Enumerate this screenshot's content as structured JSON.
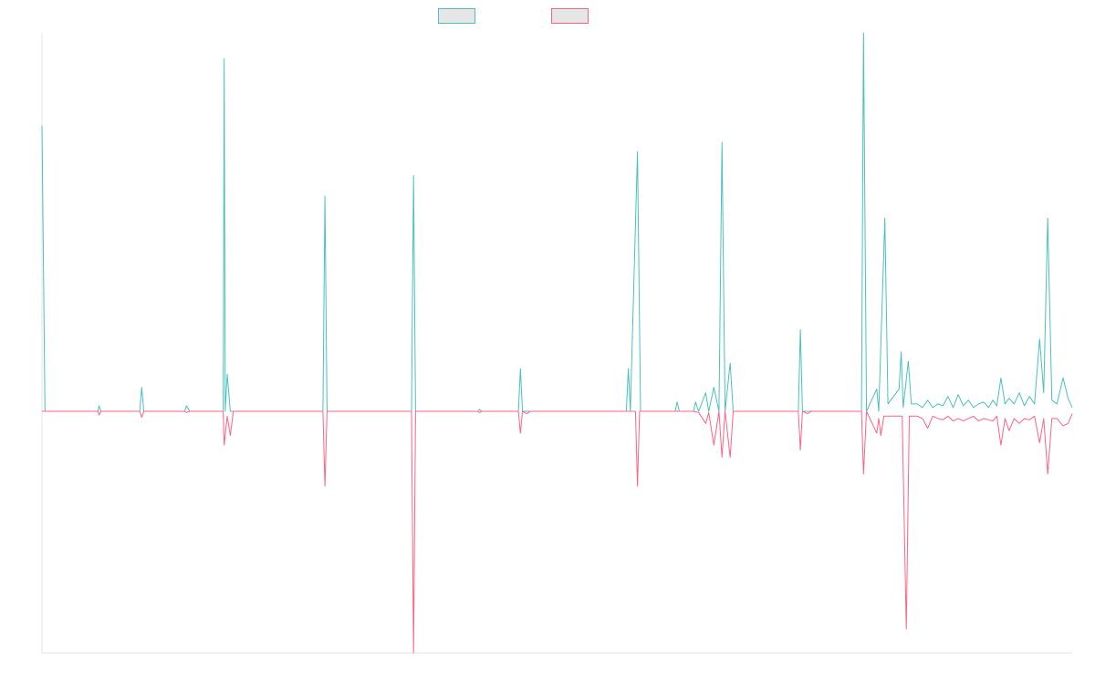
{
  "chart_data": {
    "type": "line",
    "title": "",
    "xlabel": "",
    "ylabel": "",
    "legend_position": "top-center",
    "grid": false,
    "ylim": [
      -100,
      100
    ],
    "series": [
      {
        "color": "#4bc0c0",
        "fill": "#e6e6e6",
        "points": [
          [
            0,
            77
          ],
          [
            0.3,
            0
          ],
          [
            5.5,
            0
          ],
          [
            5.6,
            1.5
          ],
          [
            5.8,
            0
          ],
          [
            9.6,
            0
          ],
          [
            9.8,
            6.5
          ],
          [
            10.0,
            0
          ],
          [
            14.0,
            0
          ],
          [
            14.2,
            1.5
          ],
          [
            14.5,
            0
          ],
          [
            17.8,
            0
          ],
          [
            17.9,
            95
          ],
          [
            18.0,
            0
          ],
          [
            18.2,
            10
          ],
          [
            18.5,
            0
          ],
          [
            27.6,
            0
          ],
          [
            27.8,
            58
          ],
          [
            28.0,
            0
          ],
          [
            36.3,
            0
          ],
          [
            36.5,
            63.5
          ],
          [
            36.7,
            0
          ],
          [
            42.8,
            0
          ],
          [
            43.0,
            0.5
          ],
          [
            43.2,
            0
          ],
          [
            46.8,
            0
          ],
          [
            47.0,
            11.5
          ],
          [
            47.2,
            0
          ],
          [
            57.4,
            0
          ],
          [
            57.6,
            11.5
          ],
          [
            57.8,
            0
          ],
          [
            58.5,
            70
          ],
          [
            58.8,
            0
          ],
          [
            62.2,
            0
          ],
          [
            62.4,
            2.5
          ],
          [
            62.6,
            0
          ],
          [
            64.0,
            0
          ],
          [
            64.2,
            2.5
          ],
          [
            64.5,
            0
          ],
          [
            65.2,
            5
          ],
          [
            65.5,
            0
          ],
          [
            66.0,
            6.5
          ],
          [
            66.5,
            0
          ],
          [
            66.8,
            72.5
          ],
          [
            67.1,
            0
          ],
          [
            67.6,
            13
          ],
          [
            67.9,
            0
          ],
          [
            74.3,
            0
          ],
          [
            74.5,
            22
          ],
          [
            74.7,
            0
          ],
          [
            80.5,
            0
          ],
          [
            80.7,
            102
          ],
          [
            81.0,
            0
          ],
          [
            82.0,
            6
          ],
          [
            82.2,
            0
          ],
          [
            82.8,
            52
          ],
          [
            83.1,
            2
          ],
          [
            84.2,
            6
          ],
          [
            84.4,
            16
          ],
          [
            84.6,
            1
          ],
          [
            85.1,
            13.5
          ],
          [
            85.4,
            2
          ],
          [
            86.0,
            2
          ],
          [
            86.5,
            1
          ],
          [
            87.0,
            3
          ],
          [
            87.5,
            1
          ],
          [
            88.0,
            2
          ],
          [
            88.5,
            1.5
          ],
          [
            89.0,
            4
          ],
          [
            89.5,
            1
          ],
          [
            90.0,
            4.5
          ],
          [
            90.5,
            1.5
          ],
          [
            91.0,
            3
          ],
          [
            91.5,
            1
          ],
          [
            92.0,
            2
          ],
          [
            92.5,
            2.5
          ],
          [
            93.0,
            1
          ],
          [
            93.4,
            3
          ],
          [
            93.8,
            1.5
          ],
          [
            94.2,
            9
          ],
          [
            94.6,
            2
          ],
          [
            95.0,
            3.5
          ],
          [
            95.5,
            2
          ],
          [
            96.0,
            5
          ],
          [
            96.5,
            1.5
          ],
          [
            97.0,
            4
          ],
          [
            97.5,
            2
          ],
          [
            98.0,
            19.5
          ],
          [
            98.4,
            5
          ],
          [
            98.8,
            52
          ],
          [
            99.2,
            3
          ],
          [
            99.7,
            2
          ],
          [
            100.3,
            9
          ],
          [
            100.8,
            3.5
          ],
          [
            101.2,
            1
          ]
        ]
      },
      {
        "color": "#ff6384",
        "fill": "#e6e6e6",
        "points": [
          [
            0,
            0
          ],
          [
            5.5,
            0
          ],
          [
            5.6,
            -1.5
          ],
          [
            5.8,
            0
          ],
          [
            9.6,
            0
          ],
          [
            9.8,
            -2.5
          ],
          [
            10.0,
            0
          ],
          [
            14.0,
            0
          ],
          [
            14.2,
            -0.5
          ],
          [
            14.5,
            0
          ],
          [
            17.8,
            0
          ],
          [
            17.9,
            -14
          ],
          [
            18.2,
            -2
          ],
          [
            18.5,
            -10
          ],
          [
            18.8,
            0
          ],
          [
            27.6,
            0
          ],
          [
            27.8,
            -31
          ],
          [
            28.0,
            0
          ],
          [
            36.3,
            0
          ],
          [
            36.5,
            -100
          ],
          [
            36.7,
            0
          ],
          [
            42.8,
            0
          ],
          [
            43.0,
            -0.5
          ],
          [
            43.2,
            0
          ],
          [
            46.8,
            0
          ],
          [
            47.0,
            -9
          ],
          [
            47.2,
            0
          ],
          [
            47.6,
            -1
          ],
          [
            48.0,
            0
          ],
          [
            58.3,
            0
          ],
          [
            58.5,
            -31
          ],
          [
            58.7,
            0
          ],
          [
            64.0,
            0
          ],
          [
            64.5,
            -0.5
          ],
          [
            65.2,
            -5
          ],
          [
            65.5,
            -0.5
          ],
          [
            66.0,
            -14
          ],
          [
            66.5,
            0
          ],
          [
            66.8,
            -19
          ],
          [
            67.1,
            0
          ],
          [
            67.6,
            -19
          ],
          [
            67.9,
            0
          ],
          [
            74.3,
            0
          ],
          [
            74.5,
            -16
          ],
          [
            74.7,
            0
          ],
          [
            75.2,
            -1
          ],
          [
            75.6,
            0
          ],
          [
            80.5,
            0
          ],
          [
            80.7,
            -26
          ],
          [
            81.0,
            0
          ],
          [
            82.0,
            -9
          ],
          [
            82.2,
            -3
          ],
          [
            82.4,
            -10
          ],
          [
            82.7,
            -2
          ],
          [
            83.5,
            -2
          ],
          [
            84.5,
            -2
          ],
          [
            84.9,
            -90
          ],
          [
            85.2,
            -2
          ],
          [
            86.0,
            -2
          ],
          [
            86.5,
            -3
          ],
          [
            87.0,
            -7
          ],
          [
            87.5,
            -2
          ],
          [
            88.0,
            -3
          ],
          [
            88.5,
            -3.5
          ],
          [
            89.0,
            -2
          ],
          [
            89.5,
            -4
          ],
          [
            90.0,
            -3
          ],
          [
            90.5,
            -4
          ],
          [
            91.0,
            -3
          ],
          [
            91.5,
            -2
          ],
          [
            92.0,
            -4
          ],
          [
            92.5,
            -3
          ],
          [
            93.0,
            -3.5
          ],
          [
            93.4,
            -4
          ],
          [
            93.8,
            -2
          ],
          [
            94.2,
            -14
          ],
          [
            94.6,
            -3
          ],
          [
            95.0,
            -8
          ],
          [
            95.5,
            -3
          ],
          [
            96.0,
            -5
          ],
          [
            96.5,
            -3
          ],
          [
            97.0,
            -3.5
          ],
          [
            97.5,
            -2
          ],
          [
            98.0,
            -13
          ],
          [
            98.4,
            -3
          ],
          [
            98.8,
            -26
          ],
          [
            99.2,
            -3
          ],
          [
            99.7,
            -3
          ],
          [
            100.3,
            -6
          ],
          [
            100.8,
            -5
          ],
          [
            101.2,
            -1
          ]
        ]
      }
    ]
  }
}
